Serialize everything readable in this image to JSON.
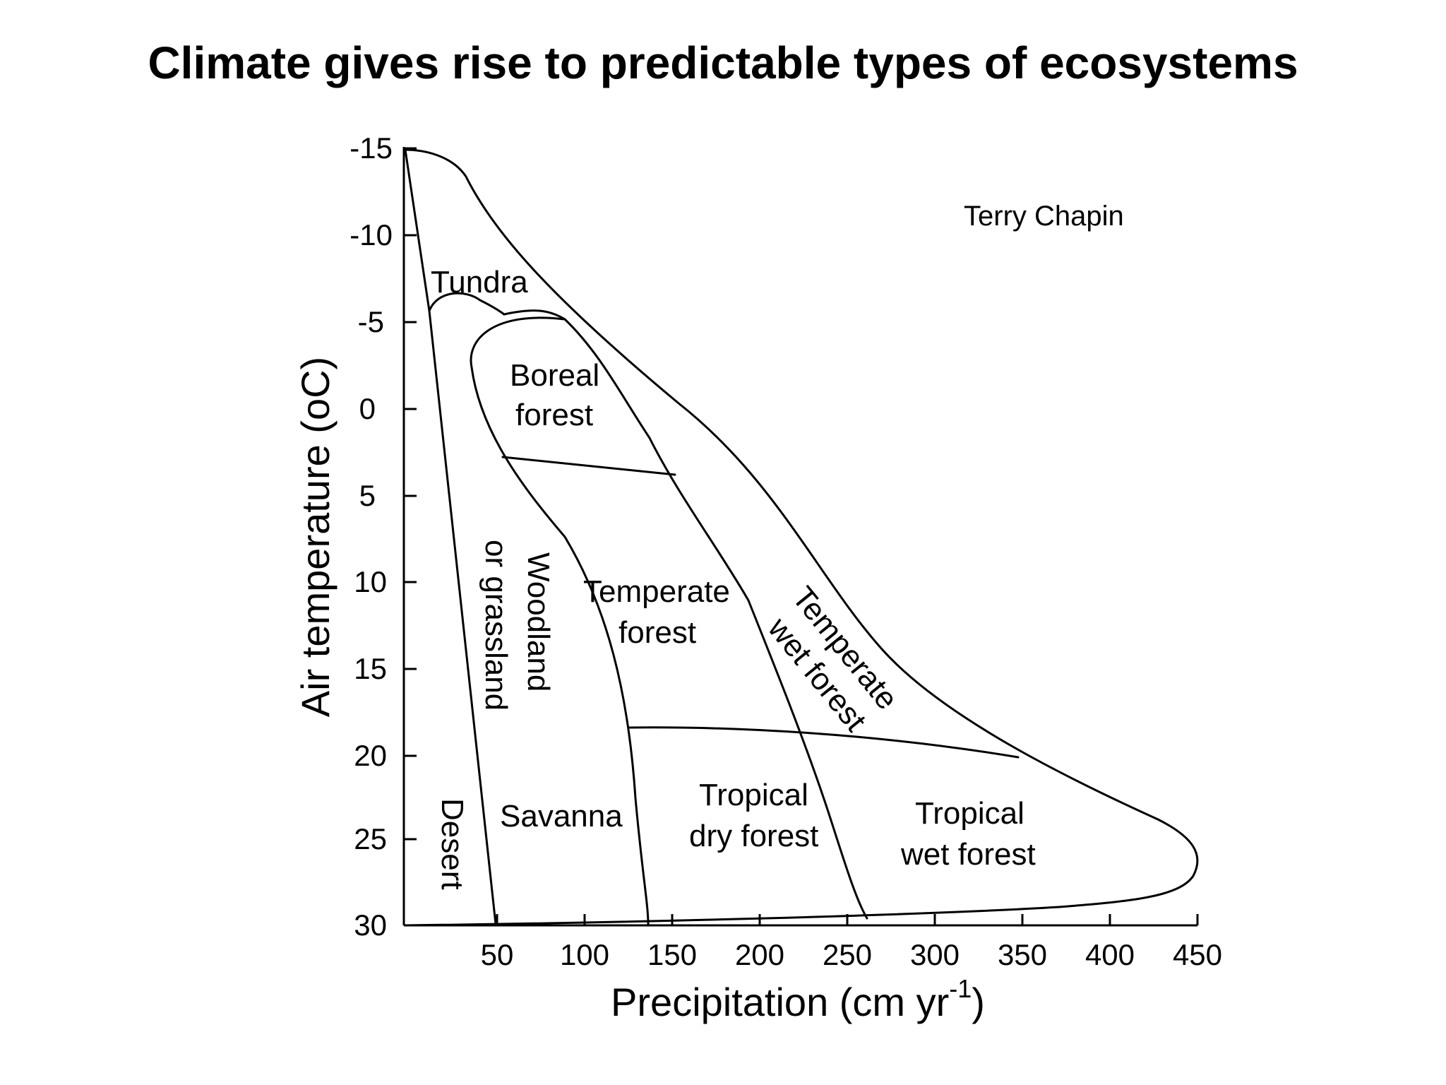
{
  "title": "Climate gives rise to predictable types of ecosystems",
  "credit": "Terry Chapin",
  "diagram": {
    "type": "biome-climate-diagram",
    "x_axis": {
      "label": "Precipitation (cm yr",
      "exponent": "-1",
      "label_close": ")",
      "ticks": [
        "50",
        "100",
        "150",
        "200",
        "250",
        "300",
        "350",
        "400",
        "450"
      ]
    },
    "y_axis": {
      "label": "Air temperature  (",
      "label_unit": "oC)",
      "ticks": [
        "-15",
        "-10",
        "-5",
        "0",
        "5",
        "10",
        "15",
        "20",
        "25",
        "30"
      ]
    },
    "biomes": {
      "tundra": "Tundra",
      "boreal_1": "Boreal",
      "boreal_2": "forest",
      "woodland_1": "Woodland",
      "woodland_2": "or grassland",
      "temperate_1": "Temperate",
      "temperate_2": "forest",
      "temperate_wet_1": "Temperate",
      "temperate_wet_2": "wet forest",
      "desert": "Desert",
      "savanna": "Savanna",
      "tropical_dry_1": "Tropical",
      "tropical_dry_2": "dry forest",
      "tropical_wet_1": "Tropical",
      "tropical_wet_2": "wet forest"
    }
  }
}
